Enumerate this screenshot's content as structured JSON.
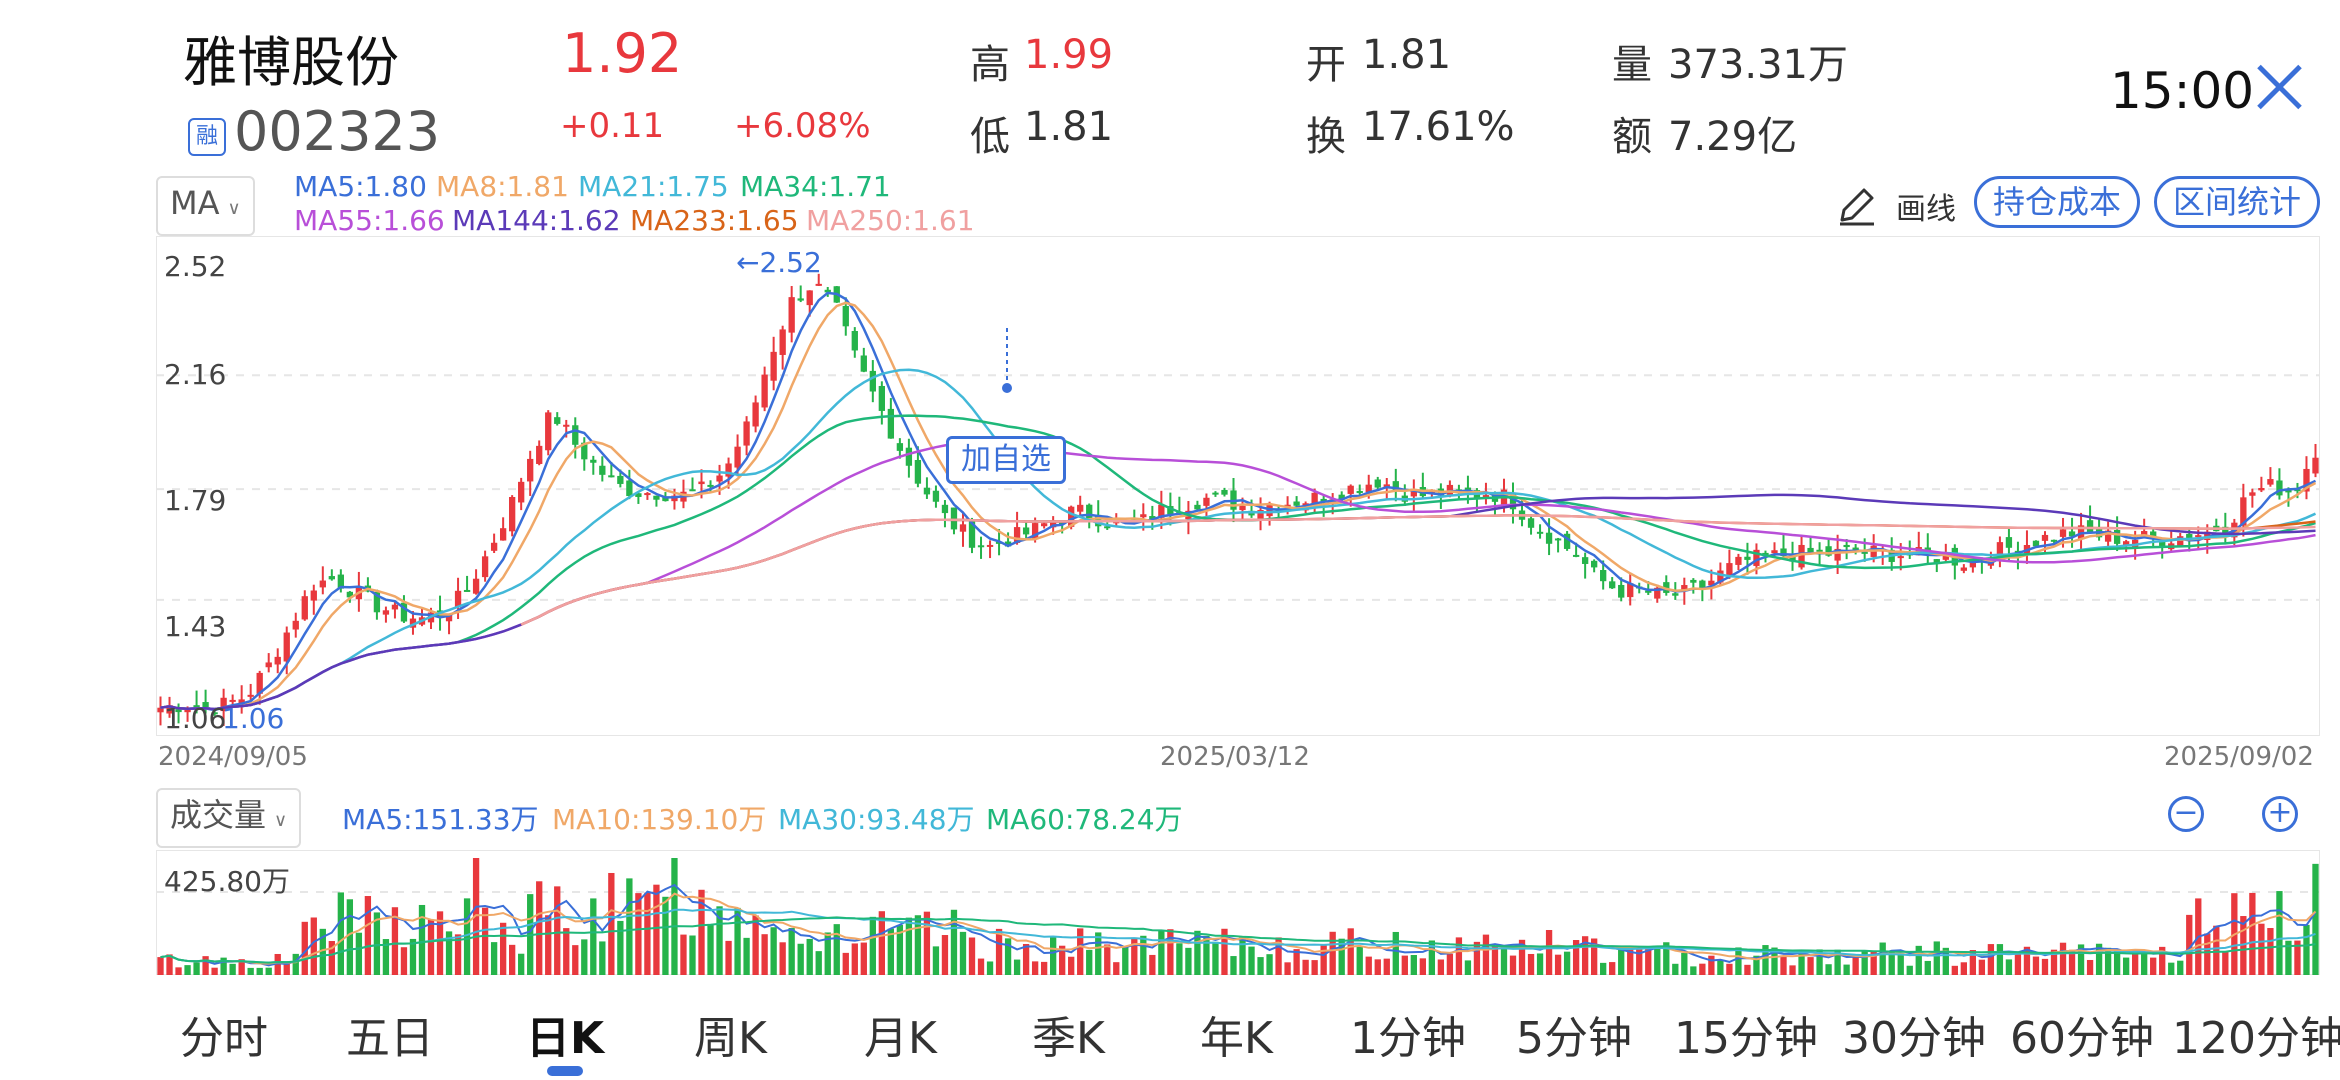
{
  "header": {
    "stock_name": "雅博股份",
    "margin_badge": "融",
    "stock_code": "002323",
    "price": "1.92",
    "change": "+0.11",
    "change_pct": "+6.08%",
    "high_label": "高",
    "high": "1.99",
    "low_label": "低",
    "low": "1.81",
    "open_label": "开",
    "open": "1.81",
    "turnover_label": "换",
    "turnover": "17.61%",
    "volume_label": "量",
    "volume": "373.31万",
    "amount_label": "额",
    "amount": "7.29亿",
    "time": "15:00",
    "colors": {
      "up": "#e8383d",
      "down": "#25b34a",
      "accent": "#3a6fd8"
    }
  },
  "toolbar": {
    "indicator": "MA",
    "draw_label": "画线",
    "cost_button": "持仓成本",
    "range_button": "区间统计"
  },
  "ma_legend": [
    {
      "label": "MA5:1.80",
      "color": "#3a6fd8"
    },
    {
      "label": "MA8:1.81",
      "color": "#f0a868"
    },
    {
      "label": "MA21:1.75",
      "color": "#42b8d8"
    },
    {
      "label": "MA34:1.71",
      "color": "#1fb87a"
    },
    {
      "label": "MA55:1.66",
      "color": "#b84fd8"
    },
    {
      "label": "MA144:1.62",
      "color": "#5b3ab8"
    },
    {
      "label": "MA233:1.65",
      "color": "#d86418"
    },
    {
      "label": "MA250:1.61",
      "color": "#f0a0a0"
    }
  ],
  "price_chart": {
    "y_ticks": [
      "2.52",
      "2.16",
      "1.79",
      "1.43",
      "1.06"
    ],
    "min_label": "1.06",
    "max_label": "2.52",
    "x_ticks": [
      "2024/09/05",
      "2025/03/12",
      "2025/09/02"
    ],
    "add_watch_label": "加自选"
  },
  "volume": {
    "indicator": "成交量",
    "legend": [
      {
        "label": "MA5:151.33万",
        "color": "#3a6fd8"
      },
      {
        "label": "MA10:139.10万",
        "color": "#f0a868"
      },
      {
        "label": "MA30:93.48万",
        "color": "#42b8d8"
      },
      {
        "label": "MA60:78.24万",
        "color": "#1fb87a"
      }
    ],
    "max_label": "425.80万",
    "zoom_out": "−",
    "zoom_in": "+"
  },
  "tabs": [
    "分时",
    "五日",
    "日K",
    "周K",
    "月K",
    "季K",
    "年K",
    "1分钟",
    "5分钟",
    "15分钟",
    "30分钟",
    "60分钟",
    "120分钟"
  ],
  "active_tab": "日K",
  "chart_data": {
    "type": "candlestick",
    "x_range": [
      "2024/09/05",
      "2025/09/02"
    ],
    "ylim": [
      1.06,
      2.52
    ],
    "closes_approx": [
      1.08,
      1.09,
      1.08,
      1.09,
      1.12,
      1.22,
      1.35,
      1.48,
      1.5,
      1.45,
      1.41,
      1.38,
      1.37,
      1.39,
      1.45,
      1.58,
      1.72,
      1.9,
      2.04,
      1.94,
      1.86,
      1.8,
      1.78,
      1.78,
      1.77,
      1.79,
      1.86,
      2.0,
      2.22,
      2.4,
      2.46,
      2.38,
      2.2,
      2.06,
      1.92,
      1.8,
      1.7,
      1.64,
      1.6,
      1.63,
      1.65,
      1.69,
      1.72,
      1.7,
      1.67,
      1.68,
      1.72,
      1.74,
      1.76,
      1.75,
      1.73,
      1.74,
      1.75,
      1.76,
      1.78,
      1.8,
      1.82,
      1.78,
      1.77,
      1.78,
      1.77,
      1.78,
      1.76,
      1.68,
      1.63,
      1.58,
      1.5,
      1.46,
      1.46,
      1.44,
      1.45,
      1.48,
      1.53,
      1.56,
      1.57,
      1.58,
      1.58,
      1.58,
      1.59,
      1.58,
      1.58,
      1.57,
      1.57,
      1.55,
      1.58,
      1.6,
      1.62,
      1.64,
      1.65,
      1.64,
      1.63,
      1.63,
      1.63,
      1.64,
      1.65,
      1.68,
      1.78,
      1.8,
      1.78,
      1.92
    ]
  }
}
